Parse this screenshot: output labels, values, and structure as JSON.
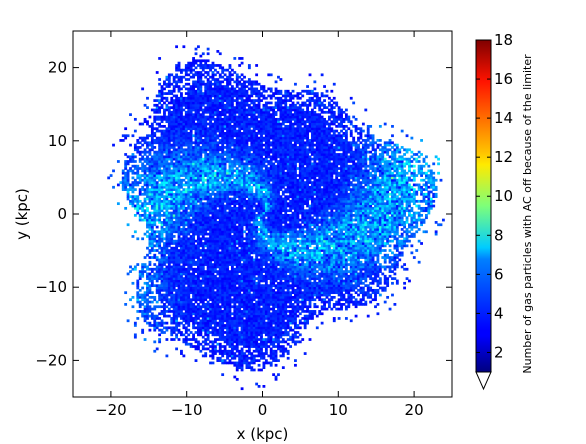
{
  "chart_data": {
    "type": "heatmap",
    "title": "",
    "xlabel": "x (kpc)",
    "ylabel": "y (kpc)",
    "xlim": [
      -25,
      25
    ],
    "ylim": [
      -25,
      25
    ],
    "xticks": [
      -20,
      -10,
      0,
      10,
      20
    ],
    "yticks": [
      -20,
      -10,
      0,
      10,
      20
    ],
    "xtick_labels": [
      "−20",
      "−10",
      "0",
      "10",
      "20"
    ],
    "ytick_labels": [
      "−20",
      "−10",
      "0",
      "10",
      "20"
    ],
    "colorbar": {
      "label": "Number of gas particles with AC off because of the limiter",
      "min": 1,
      "max": 18,
      "ticks": [
        2,
        4,
        6,
        8,
        10,
        12,
        14,
        16,
        18
      ],
      "tick_labels": [
        "2",
        "4",
        "6",
        "8",
        "10",
        "12",
        "14",
        "16",
        "18"
      ],
      "extend": "min",
      "colormap": "jet"
    },
    "description_of_data": {
      "disk_radius_kpc": 22,
      "center": [
        0,
        0
      ],
      "typical_count": "1-4",
      "peak_count": "about 7-9 along spiral arms"
    }
  },
  "colors": {
    "background": "#ffffff",
    "frame": "#000000"
  }
}
